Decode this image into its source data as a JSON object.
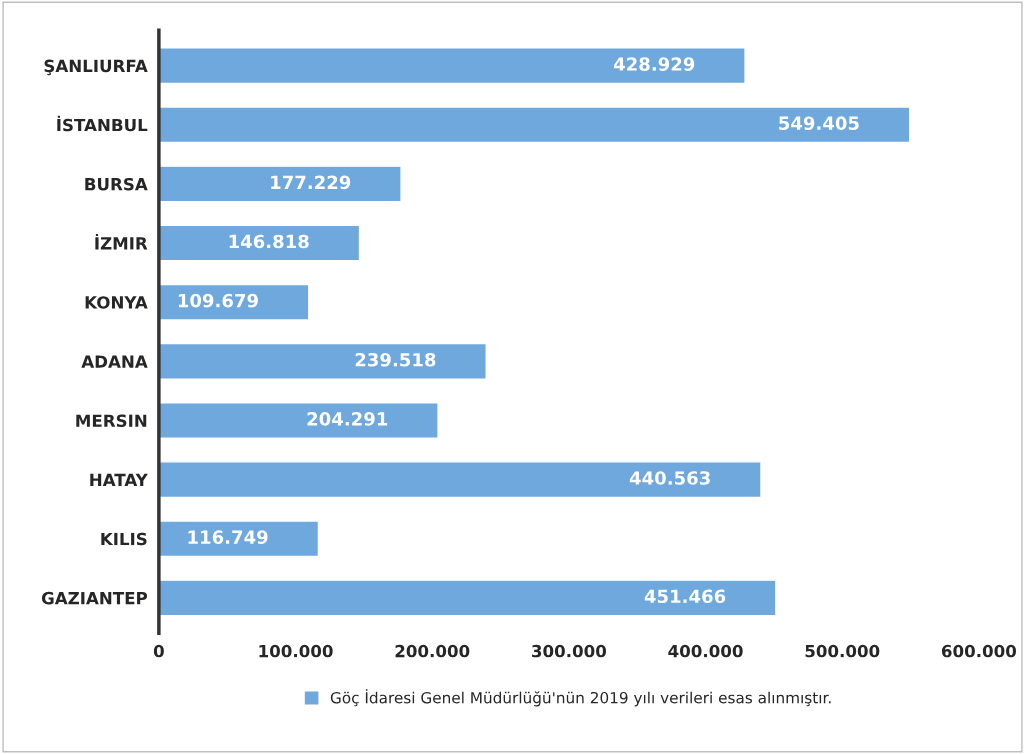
{
  "chart_data": {
    "type": "bar",
    "orientation": "horizontal",
    "categories": [
      "ŞANLIURFA",
      "İSTANBUL",
      "BURSA",
      "İZMIR",
      "KONYA",
      "ADANA",
      "MERSIN",
      "HATAY",
      "KILIS",
      "GAZIANTEP"
    ],
    "series": [
      {
        "name": "Göç İdaresi Genel Müdürlüğü'nün 2019 yılı verileri esas alınmıştır.",
        "color": "#6fa8dc",
        "values": [
          428929,
          549405,
          177229,
          146818,
          109679,
          239518,
          204291,
          440563,
          116749,
          451466
        ],
        "value_labels": [
          "428.929",
          "549.405",
          "177.229",
          "146.818",
          "109.679",
          "239.518",
          "204.291",
          "440.563",
          "116.749",
          "451.466"
        ]
      }
    ],
    "xlim": [
      0,
      600000
    ],
    "xticks": [
      {
        "value": 0,
        "label": "0"
      },
      {
        "value": 100000,
        "label": "100.000"
      },
      {
        "value": 200000,
        "label": "200.000"
      },
      {
        "value": 300000,
        "label": "300.000"
      },
      {
        "value": 400000,
        "label": "400.000"
      },
      {
        "value": 500000,
        "label": "500.000"
      },
      {
        "value": 600000,
        "label": "600.000"
      }
    ],
    "legend": "bottom",
    "grid": false
  }
}
